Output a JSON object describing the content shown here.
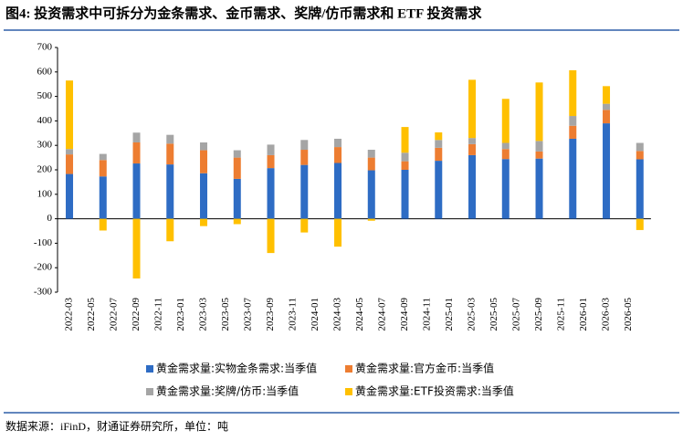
{
  "chart_data": {
    "type": "stacked_bar",
    "title": "图4: 投资需求中可拆分为金条需求、金币需求、奖牌/仿币需求和 ETF 投资需求",
    "source": "数据来源：iFinD，财通证券研究所，单位：吨",
    "categories": [
      "2022-03",
      null,
      "2022-05",
      null,
      "2022-07",
      null,
      "2022-09",
      null,
      "2022-11",
      null,
      "2023-01",
      null,
      "2023-03",
      null,
      "2023-05",
      null,
      "2023-07",
      null,
      "2023-09",
      null,
      "2023-11",
      null,
      "2024-01",
      null,
      "2024-03",
      null,
      "2024-05",
      null,
      "2024-07",
      null,
      "2024-09",
      null,
      "2024-11",
      null,
      "2025-01",
      null,
      "2025-03",
      null,
      "2025-05",
      null,
      "2025-07",
      null,
      "2025-09",
      null,
      "2025-11",
      null,
      "2026-01",
      null,
      "2026-03",
      null,
      "2026-05",
      null
    ],
    "series": [
      {
        "name": "黄金需求量:实物金条需求:当季值",
        "color": "#2e6cc4",
        "values": [
          183,
          null,
          null,
          173,
          null,
          null,
          226,
          null,
          null,
          222,
          null,
          null,
          186,
          null,
          null,
          163,
          null,
          null,
          207,
          null,
          null,
          220,
          null,
          null,
          228,
          null,
          null,
          198,
          null,
          null,
          200,
          null,
          null,
          237,
          null,
          null,
          260,
          null,
          null,
          244,
          null,
          null,
          246,
          null,
          null,
          327,
          null,
          null,
          390,
          null,
          null,
          243
        ]
      },
      {
        "name": "黄金需求量:官方金币:当季值",
        "color": "#ed7d31",
        "values": [
          80,
          null,
          null,
          67,
          null,
          null,
          86,
          null,
          null,
          85,
          null,
          null,
          94,
          null,
          null,
          87,
          null,
          null,
          53,
          null,
          null,
          62,
          null,
          null,
          65,
          null,
          null,
          52,
          null,
          null,
          35,
          null,
          null,
          53,
          null,
          null,
          45,
          null,
          null,
          41,
          null,
          null,
          29,
          null,
          null,
          53,
          null,
          null,
          55,
          null,
          null,
          34
        ]
      },
      {
        "name": "黄金需求量:奖牌/仿币:当季值",
        "color": "#a5a5a5",
        "values": [
          22,
          null,
          null,
          25,
          null,
          null,
          40,
          null,
          null,
          36,
          null,
          null,
          32,
          null,
          null,
          30,
          null,
          null,
          43,
          null,
          null,
          40,
          null,
          null,
          34,
          null,
          null,
          32,
          null,
          null,
          35,
          null,
          null,
          32,
          null,
          null,
          25,
          null,
          null,
          25,
          null,
          null,
          43,
          null,
          null,
          40,
          null,
          null,
          25,
          null,
          null,
          33
        ]
      },
      {
        "name": "黄金需求量:ETF投资需求:当季值",
        "color": "#ffc000",
        "values": [
          280,
          null,
          null,
          -48,
          null,
          null,
          -244,
          null,
          null,
          -92,
          null,
          null,
          -30,
          null,
          null,
          -22,
          null,
          null,
          -140,
          null,
          null,
          -56,
          null,
          null,
          -114,
          null,
          null,
          -8,
          null,
          null,
          105,
          null,
          null,
          31,
          null,
          null,
          238,
          null,
          null,
          180,
          null,
          null,
          239,
          null,
          null,
          187,
          null,
          null,
          72,
          null,
          null,
          -46
        ]
      }
    ],
    "ylim": [
      -300,
      700
    ],
    "yticks": [
      -300,
      -200,
      -100,
      0,
      100,
      200,
      300,
      400,
      500,
      600,
      700
    ],
    "grid": false
  }
}
